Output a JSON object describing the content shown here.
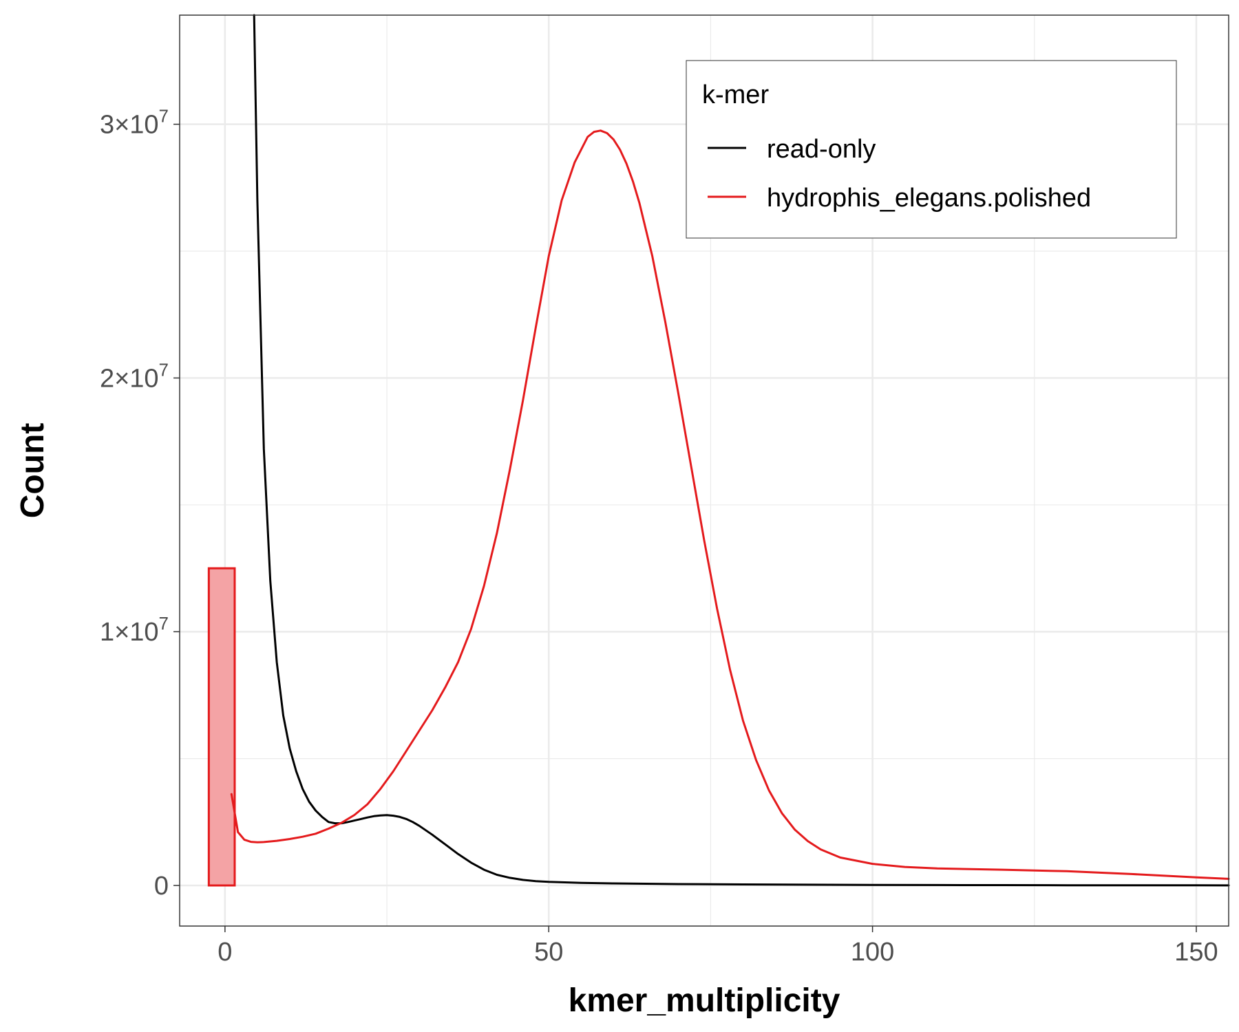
{
  "chart_data": {
    "type": "line",
    "xlabel": "kmer_multiplicity",
    "ylabel": "Count",
    "xlim": [
      -7,
      155
    ],
    "ylim": [
      -1600000,
      34300000
    ],
    "x_ticks": [
      0,
      50,
      100,
      150
    ],
    "x_tick_labels": [
      "0",
      "50",
      "100",
      "150"
    ],
    "y_ticks": [
      0,
      10000000,
      20000000,
      30000000
    ],
    "y_tick_labels": [
      {
        "mantissa": "0",
        "exp": ""
      },
      {
        "mantissa": "1",
        "exp": "7"
      },
      {
        "mantissa": "2",
        "exp": "7"
      },
      {
        "mantissa": "3",
        "exp": "7"
      }
    ],
    "grid": true,
    "legend": {
      "title": "k-mer",
      "placement": "top-right",
      "entries": [
        "read-only",
        "hydrophis_elegans.polished"
      ]
    },
    "series": [
      {
        "name": "read-only",
        "color": "#000000",
        "x": [
          4.5,
          5,
          6,
          7,
          8,
          9,
          10,
          11,
          12,
          13,
          14,
          15,
          16,
          17,
          18,
          19,
          20,
          21,
          22,
          23,
          24,
          25,
          26,
          27,
          28,
          29,
          30,
          32,
          34,
          36,
          38,
          40,
          42,
          44,
          46,
          48,
          50,
          55,
          60,
          70,
          80,
          90,
          100,
          110,
          120,
          130,
          140,
          150,
          155
        ],
        "y": [
          34300000,
          27000000,
          17200000,
          12000000,
          8800000,
          6700000,
          5400000,
          4500000,
          3800000,
          3300000,
          2950000,
          2700000,
          2500000,
          2450000,
          2450000,
          2500000,
          2560000,
          2620000,
          2680000,
          2730000,
          2760000,
          2770000,
          2750000,
          2700000,
          2620000,
          2500000,
          2350000,
          2000000,
          1620000,
          1240000,
          900000,
          620000,
          420000,
          300000,
          220000,
          170000,
          140000,
          100000,
          80000,
          55000,
          40000,
          30000,
          22000,
          16000,
          12000,
          9000,
          6000,
          4000,
          3000
        ]
      },
      {
        "name": "hydrophis_elegans.polished",
        "color": "#e41a1c",
        "x": [
          1,
          2,
          3,
          4,
          5,
          6,
          8,
          10,
          12,
          14,
          16,
          18,
          20,
          22,
          24,
          26,
          28,
          30,
          32,
          34,
          36,
          38,
          40,
          42,
          44,
          46,
          48,
          50,
          52,
          54,
          56,
          57,
          58,
          59,
          60,
          61,
          62,
          63,
          64,
          66,
          68,
          70,
          72,
          74,
          76,
          78,
          80,
          82,
          84,
          86,
          88,
          90,
          92,
          95,
          100,
          105,
          110,
          120,
          130,
          140,
          150,
          155
        ],
        "y": [
          3600000,
          2100000,
          1800000,
          1720000,
          1700000,
          1710000,
          1760000,
          1830000,
          1920000,
          2040000,
          2240000,
          2470000,
          2780000,
          3200000,
          3800000,
          4500000,
          5300000,
          6100000,
          6900000,
          7800000,
          8800000,
          10100000,
          11800000,
          13900000,
          16400000,
          19100000,
          22000000,
          24800000,
          27000000,
          28500000,
          29500000,
          29700000,
          29750000,
          29650000,
          29400000,
          29000000,
          28450000,
          27750000,
          26900000,
          24800000,
          22200000,
          19400000,
          16500000,
          13600000,
          10900000,
          8500000,
          6500000,
          4950000,
          3750000,
          2850000,
          2200000,
          1750000,
          1420000,
          1100000,
          850000,
          730000,
          670000,
          620000,
          560000,
          450000,
          320000,
          260000
        ]
      }
    ],
    "bars": [
      {
        "series": "hydrophis_elegans.polished",
        "x0": -2.5,
        "x1": 1.5,
        "value": 12500000,
        "fill": "#f4a3a5",
        "stroke": "#e41a1c"
      }
    ]
  }
}
